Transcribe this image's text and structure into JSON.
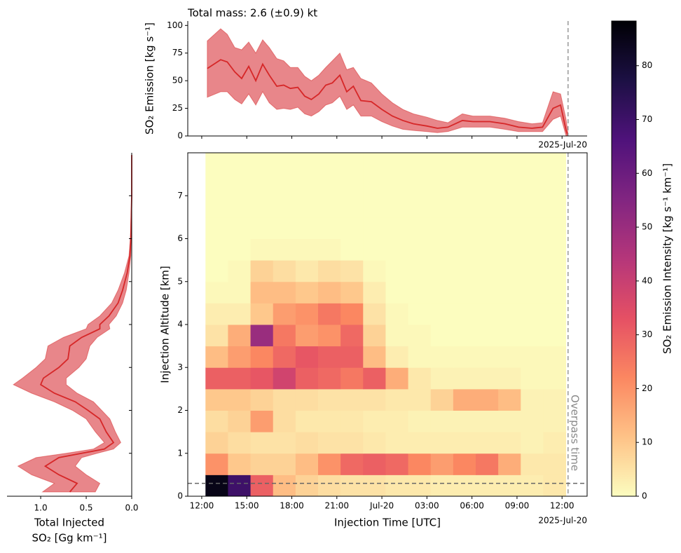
{
  "chart_data": [
    {
      "type": "line",
      "title": "Total mass: 2.6 (±0.9) kt",
      "ylabel": "SO₂ Emission [kg s⁻¹]",
      "color": "#d62728",
      "band_color": "#e8868a",
      "x": [
        12.37,
        13.26,
        13.7,
        14.2,
        14.66,
        15.13,
        15.6,
        16.06,
        16.5,
        17,
        17.46,
        17.9,
        18.4,
        18.86,
        19.3,
        19.8,
        20.26,
        20.7,
        21.2,
        21.66,
        22.1,
        22.6,
        23.3,
        24,
        24.7,
        25.4,
        26.1,
        27,
        27.7,
        28.4,
        29.36,
        30.06,
        31.2,
        32.2,
        33.1,
        34,
        34.7,
        35.4,
        35.9,
        36.27,
        36.4
      ],
      "values": [
        61,
        69,
        67,
        58,
        52,
        63,
        50,
        65,
        55,
        45,
        46,
        43,
        44,
        36,
        33,
        38,
        46,
        48,
        55,
        40,
        45,
        32,
        31,
        24,
        18,
        14,
        11,
        9,
        7,
        8,
        14,
        13,
        13,
        11,
        8,
        7,
        8,
        25,
        28,
        5,
        0
      ],
      "upper": [
        86,
        97,
        92,
        80,
        78,
        85,
        75,
        87,
        80,
        70,
        68,
        62,
        62,
        54,
        50,
        55,
        62,
        68,
        75,
        60,
        62,
        52,
        48,
        38,
        30,
        24,
        20,
        17,
        14,
        12,
        20,
        18,
        18,
        16,
        13,
        11,
        12,
        40,
        38,
        15,
        2
      ],
      "lower": [
        35,
        40,
        40,
        33,
        29,
        38,
        28,
        40,
        30,
        24,
        25,
        24,
        26,
        20,
        18,
        22,
        28,
        30,
        36,
        24,
        28,
        18,
        18,
        13,
        9,
        6,
        5,
        4,
        3,
        4,
        8,
        8,
        8,
        6,
        4,
        4,
        4,
        15,
        18,
        0,
        0
      ],
      "xlim": [
        11.07,
        37.67
      ],
      "ylim": [
        0,
        104
      ],
      "yticks": [
        0,
        25,
        50,
        75,
        100
      ],
      "xticks": [
        12,
        15,
        18,
        21,
        24,
        27,
        30,
        33,
        36
      ],
      "offset_label": "2025-Jul-20",
      "vline": 36.4
    },
    {
      "type": "heatmap",
      "xlabel": "Injection Time [UTC]",
      "ylabel": "Injection Altitude [km]",
      "colormap": "magma_r",
      "xbins": [
        12.25,
        13.75,
        15.25,
        16.75,
        18.25,
        19.75,
        21.25,
        22.75,
        24.25,
        25.75,
        27.25,
        28.75,
        30.25,
        31.75,
        33.25,
        34.75,
        36.25
      ],
      "ybins": [
        0,
        0.5,
        1,
        1.5,
        2,
        2.5,
        3,
        3.5,
        4,
        4.5,
        5,
        5.5,
        6,
        6.5,
        7,
        7.5,
        8
      ],
      "z": [
        [
          85,
          70,
          30,
          12,
          8,
          6,
          5,
          5,
          4,
          4,
          3,
          3,
          3,
          3,
          3,
          4
        ],
        [
          20,
          10,
          8,
          8,
          12,
          20,
          28,
          30,
          28,
          22,
          18,
          22,
          25,
          15,
          4,
          4
        ],
        [
          8,
          6,
          5,
          5,
          6,
          5,
          5,
          4,
          3,
          3,
          3,
          3,
          3,
          3,
          2,
          3
        ],
        [
          6,
          8,
          18,
          6,
          4,
          4,
          4,
          3,
          3,
          2,
          2,
          2,
          2,
          2,
          2,
          2
        ],
        [
          10,
          10,
          8,
          6,
          6,
          5,
          5,
          5,
          4,
          4,
          8,
          15,
          15,
          12,
          2,
          2
        ],
        [
          30,
          30,
          32,
          38,
          30,
          28,
          25,
          30,
          15,
          4,
          2,
          2,
          2,
          2,
          1,
          1
        ],
        [
          12,
          18,
          22,
          28,
          32,
          30,
          30,
          12,
          3,
          1,
          1,
          1,
          1,
          1,
          1,
          1
        ],
        [
          5,
          15,
          50,
          25,
          18,
          20,
          28,
          8,
          1,
          1,
          0,
          0,
          0,
          0,
          0,
          0
        ],
        [
          3,
          3,
          10,
          18,
          20,
          25,
          22,
          5,
          1,
          0,
          0,
          0,
          0,
          0,
          0,
          0
        ],
        [
          1,
          1,
          12,
          12,
          10,
          12,
          10,
          3,
          0,
          0,
          0,
          0,
          0,
          0,
          0,
          0
        ],
        [
          0,
          1,
          8,
          6,
          4,
          6,
          5,
          1,
          0,
          0,
          0,
          0,
          0,
          0,
          0,
          0
        ],
        [
          0,
          0,
          1,
          1,
          1,
          1,
          0,
          0,
          0,
          0,
          0,
          0,
          0,
          0,
          0,
          0
        ],
        [
          0,
          0,
          0,
          0,
          0,
          0,
          0,
          0,
          0,
          0,
          0,
          0,
          0,
          0,
          0,
          0
        ],
        [
          0,
          0,
          0,
          0,
          0,
          0,
          0,
          0,
          0,
          0,
          0,
          0,
          0,
          0,
          0,
          0
        ],
        [
          0,
          0,
          0,
          0,
          0,
          0,
          0,
          0,
          0,
          0,
          0,
          0,
          0,
          0,
          0,
          0
        ],
        [
          0,
          0,
          0,
          0,
          0,
          0,
          0,
          0,
          0,
          0,
          0,
          0,
          0,
          0,
          0,
          0
        ]
      ],
      "xlim": [
        11.07,
        37.67
      ],
      "ylim": [
        0,
        8
      ],
      "yticks": [
        0,
        1,
        2,
        3,
        4,
        5,
        6,
        7
      ],
      "xticks": [
        {
          "value": 12,
          "label": "12:00"
        },
        {
          "value": 15,
          "label": "15:00"
        },
        {
          "value": 18,
          "label": "18:00"
        },
        {
          "value": 21,
          "label": "21:00"
        },
        {
          "value": 24,
          "label": "Jul-20"
        },
        {
          "value": 27,
          "label": "03:00"
        },
        {
          "value": 30,
          "label": "06:00"
        },
        {
          "value": 33,
          "label": "09:00"
        },
        {
          "value": 36,
          "label": "12:00"
        }
      ],
      "offset_label": "2025-Jul-20",
      "vline": 36.4,
      "vline_label": "Overpass time",
      "hline": 0.3,
      "zlim": [
        0,
        88.3
      ],
      "colorbar_ticks": [
        0,
        10,
        20,
        30,
        40,
        50,
        60,
        70,
        80
      ],
      "colorbar_label": "SO₂ Emission Intensity [kg s⁻¹ km⁻¹]"
    },
    {
      "type": "profile",
      "xlabel": [
        "Total Injected",
        "SO₂ [Gg km⁻¹]"
      ],
      "color": "#d62728",
      "band_color": "#e8868a",
      "y": [
        0.1,
        0.3,
        0.5,
        0.7,
        0.9,
        1.0,
        1.1,
        1.25,
        1.5,
        1.8,
        2.0,
        2.2,
        2.4,
        2.6,
        2.75,
        3.0,
        3.2,
        3.5,
        3.7,
        3.9,
        4.0,
        4.2,
        4.5,
        4.8,
        5.2,
        5.6,
        6.0,
        7.0,
        7.95
      ],
      "values": [
        0.68,
        0.6,
        0.8,
        0.95,
        0.8,
        0.55,
        0.3,
        0.2,
        0.28,
        0.35,
        0.48,
        0.62,
        0.85,
        1.0,
        0.97,
        0.8,
        0.7,
        0.68,
        0.55,
        0.35,
        0.35,
        0.25,
        0.15,
        0.1,
        0.05,
        0.02,
        0.01,
        0,
        0
      ],
      "upper": [
        0.98,
        0.85,
        1.1,
        1.25,
        1.05,
        0.72,
        0.42,
        0.3,
        0.4,
        0.5,
        0.65,
        0.85,
        1.1,
        1.3,
        1.2,
        1.05,
        0.95,
        0.92,
        0.75,
        0.5,
        0.48,
        0.35,
        0.22,
        0.15,
        0.08,
        0.03,
        0.015,
        0,
        0
      ],
      "lower": [
        0.4,
        0.35,
        0.5,
        0.62,
        0.55,
        0.38,
        0.2,
        0.12,
        0.18,
        0.24,
        0.33,
        0.42,
        0.6,
        0.72,
        0.72,
        0.58,
        0.5,
        0.46,
        0.38,
        0.24,
        0.25,
        0.17,
        0.1,
        0.06,
        0.03,
        0.01,
        0.005,
        0,
        0
      ],
      "xlim": [
        1.37,
        0
      ],
      "ylim": [
        0,
        8
      ],
      "yticks": [
        0,
        1,
        2,
        3,
        4,
        5,
        6,
        7
      ],
      "xticks": [
        {
          "value": 1,
          "label": "1.0"
        },
        {
          "value": 0.5,
          "label": "0.5"
        },
        {
          "value": 0,
          "label": "0.0"
        }
      ]
    }
  ]
}
